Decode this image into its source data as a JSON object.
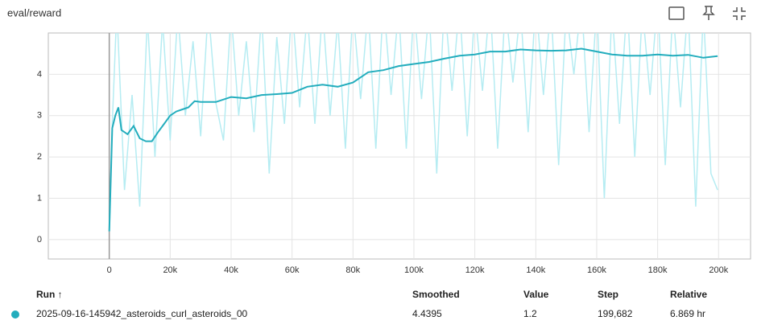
{
  "chart_data": {
    "type": "line",
    "title": "eval/reward",
    "xlim": [
      -20000,
      210500
    ],
    "ylim": [
      -0.47,
      5
    ],
    "xticks": [
      {
        "value": 0,
        "label": "0"
      },
      {
        "value": 20000,
        "label": "20k"
      },
      {
        "value": 40000,
        "label": "40k"
      },
      {
        "value": 60000,
        "label": "60k"
      },
      {
        "value": 80000,
        "label": "80k"
      },
      {
        "value": 100000,
        "label": "100k"
      },
      {
        "value": 120000,
        "label": "120k"
      },
      {
        "value": 140000,
        "label": "140k"
      },
      {
        "value": 160000,
        "label": "160k"
      },
      {
        "value": 180000,
        "label": "180k"
      },
      {
        "value": 200000,
        "label": "200k"
      }
    ],
    "yticks": [
      0,
      1,
      2,
      3,
      4
    ],
    "grid": true,
    "series": [
      {
        "color": "#b5ecf2",
        "x": [
          0,
          1000,
          2500,
          5000,
          7500,
          10000,
          12500,
          15000,
          17500,
          20000,
          22500,
          25000,
          27500,
          30000,
          32500,
          35000,
          37500,
          40000,
          42500,
          45000,
          47500,
          50000,
          52500,
          55000,
          57500,
          60000,
          62500,
          65000,
          67500,
          70000,
          72500,
          75000,
          77500,
          80000,
          82500,
          85000,
          87500,
          90000,
          92500,
          95000,
          97500,
          100000,
          102500,
          105000,
          107500,
          110000,
          112500,
          115000,
          117500,
          120000,
          122500,
          125000,
          127500,
          130000,
          132500,
          135000,
          137500,
          140000,
          142500,
          145000,
          147500,
          150000,
          152500,
          155000,
          157500,
          160000,
          162500,
          165000,
          167500,
          170000,
          172500,
          175000,
          177500,
          180000,
          182500,
          185000,
          187500,
          190000,
          192500,
          195000,
          197500,
          199682
        ],
        "values": [
          0.2,
          2.8,
          5.6,
          1.2,
          3.5,
          0.8,
          5.4,
          2.0,
          5.3,
          2.4,
          5.5,
          3.0,
          4.8,
          2.5,
          5.6,
          3.3,
          2.4,
          5.5,
          3.0,
          4.8,
          2.6,
          5.5,
          1.6,
          4.9,
          2.8,
          5.7,
          3.2,
          5.5,
          2.8,
          5.6,
          3.0,
          5.3,
          2.2,
          5.6,
          3.4,
          5.6,
          2.2,
          5.8,
          3.5,
          5.6,
          2.2,
          5.7,
          3.4,
          5.6,
          1.6,
          5.8,
          3.6,
          5.7,
          2.5,
          5.6,
          3.6,
          5.8,
          2.2,
          5.7,
          3.8,
          5.6,
          2.6,
          5.8,
          3.5,
          5.7,
          1.8,
          5.6,
          4.0,
          5.8,
          2.6,
          5.7,
          1.0,
          5.6,
          2.8,
          5.8,
          2.0,
          5.6,
          3.5,
          5.8,
          1.8,
          5.6,
          3.2,
          5.7,
          0.8,
          5.6,
          1.6,
          1.2
        ]
      },
      {
        "color": "#23adbd",
        "x": [
          0,
          1000,
          2000,
          3000,
          4000,
          6000,
          8000,
          10000,
          12000,
          14000,
          16000,
          18000,
          20000,
          22000,
          24000,
          26000,
          28000,
          30000,
          35000,
          40000,
          45000,
          50000,
          55000,
          60000,
          65000,
          70000,
          75000,
          80000,
          85000,
          90000,
          95000,
          100000,
          105000,
          110000,
          115000,
          120000,
          125000,
          130000,
          135000,
          140000,
          145000,
          150000,
          155000,
          160000,
          165000,
          170000,
          175000,
          180000,
          185000,
          190000,
          195000,
          199682
        ],
        "values": [
          0.2,
          2.7,
          3.0,
          3.2,
          2.65,
          2.55,
          2.75,
          2.45,
          2.38,
          2.38,
          2.6,
          2.8,
          3.0,
          3.1,
          3.15,
          3.2,
          3.35,
          3.33,
          3.33,
          3.45,
          3.42,
          3.5,
          3.52,
          3.55,
          3.7,
          3.75,
          3.7,
          3.8,
          4.05,
          4.1,
          4.2,
          4.25,
          4.3,
          4.38,
          4.45,
          4.48,
          4.55,
          4.55,
          4.6,
          4.58,
          4.57,
          4.58,
          4.62,
          4.55,
          4.48,
          4.45,
          4.45,
          4.48,
          4.45,
          4.47,
          4.4,
          4.4395
        ]
      }
    ]
  },
  "table": {
    "headers": [
      "Run ↑",
      "Smoothed",
      "Value",
      "Step",
      "Relative"
    ],
    "rows": [
      [
        "2025-09-16-145942_asteroids_curl_asteroids_00",
        "4.4395",
        "1.2",
        "199,682",
        "6.869 hr"
      ]
    ]
  }
}
